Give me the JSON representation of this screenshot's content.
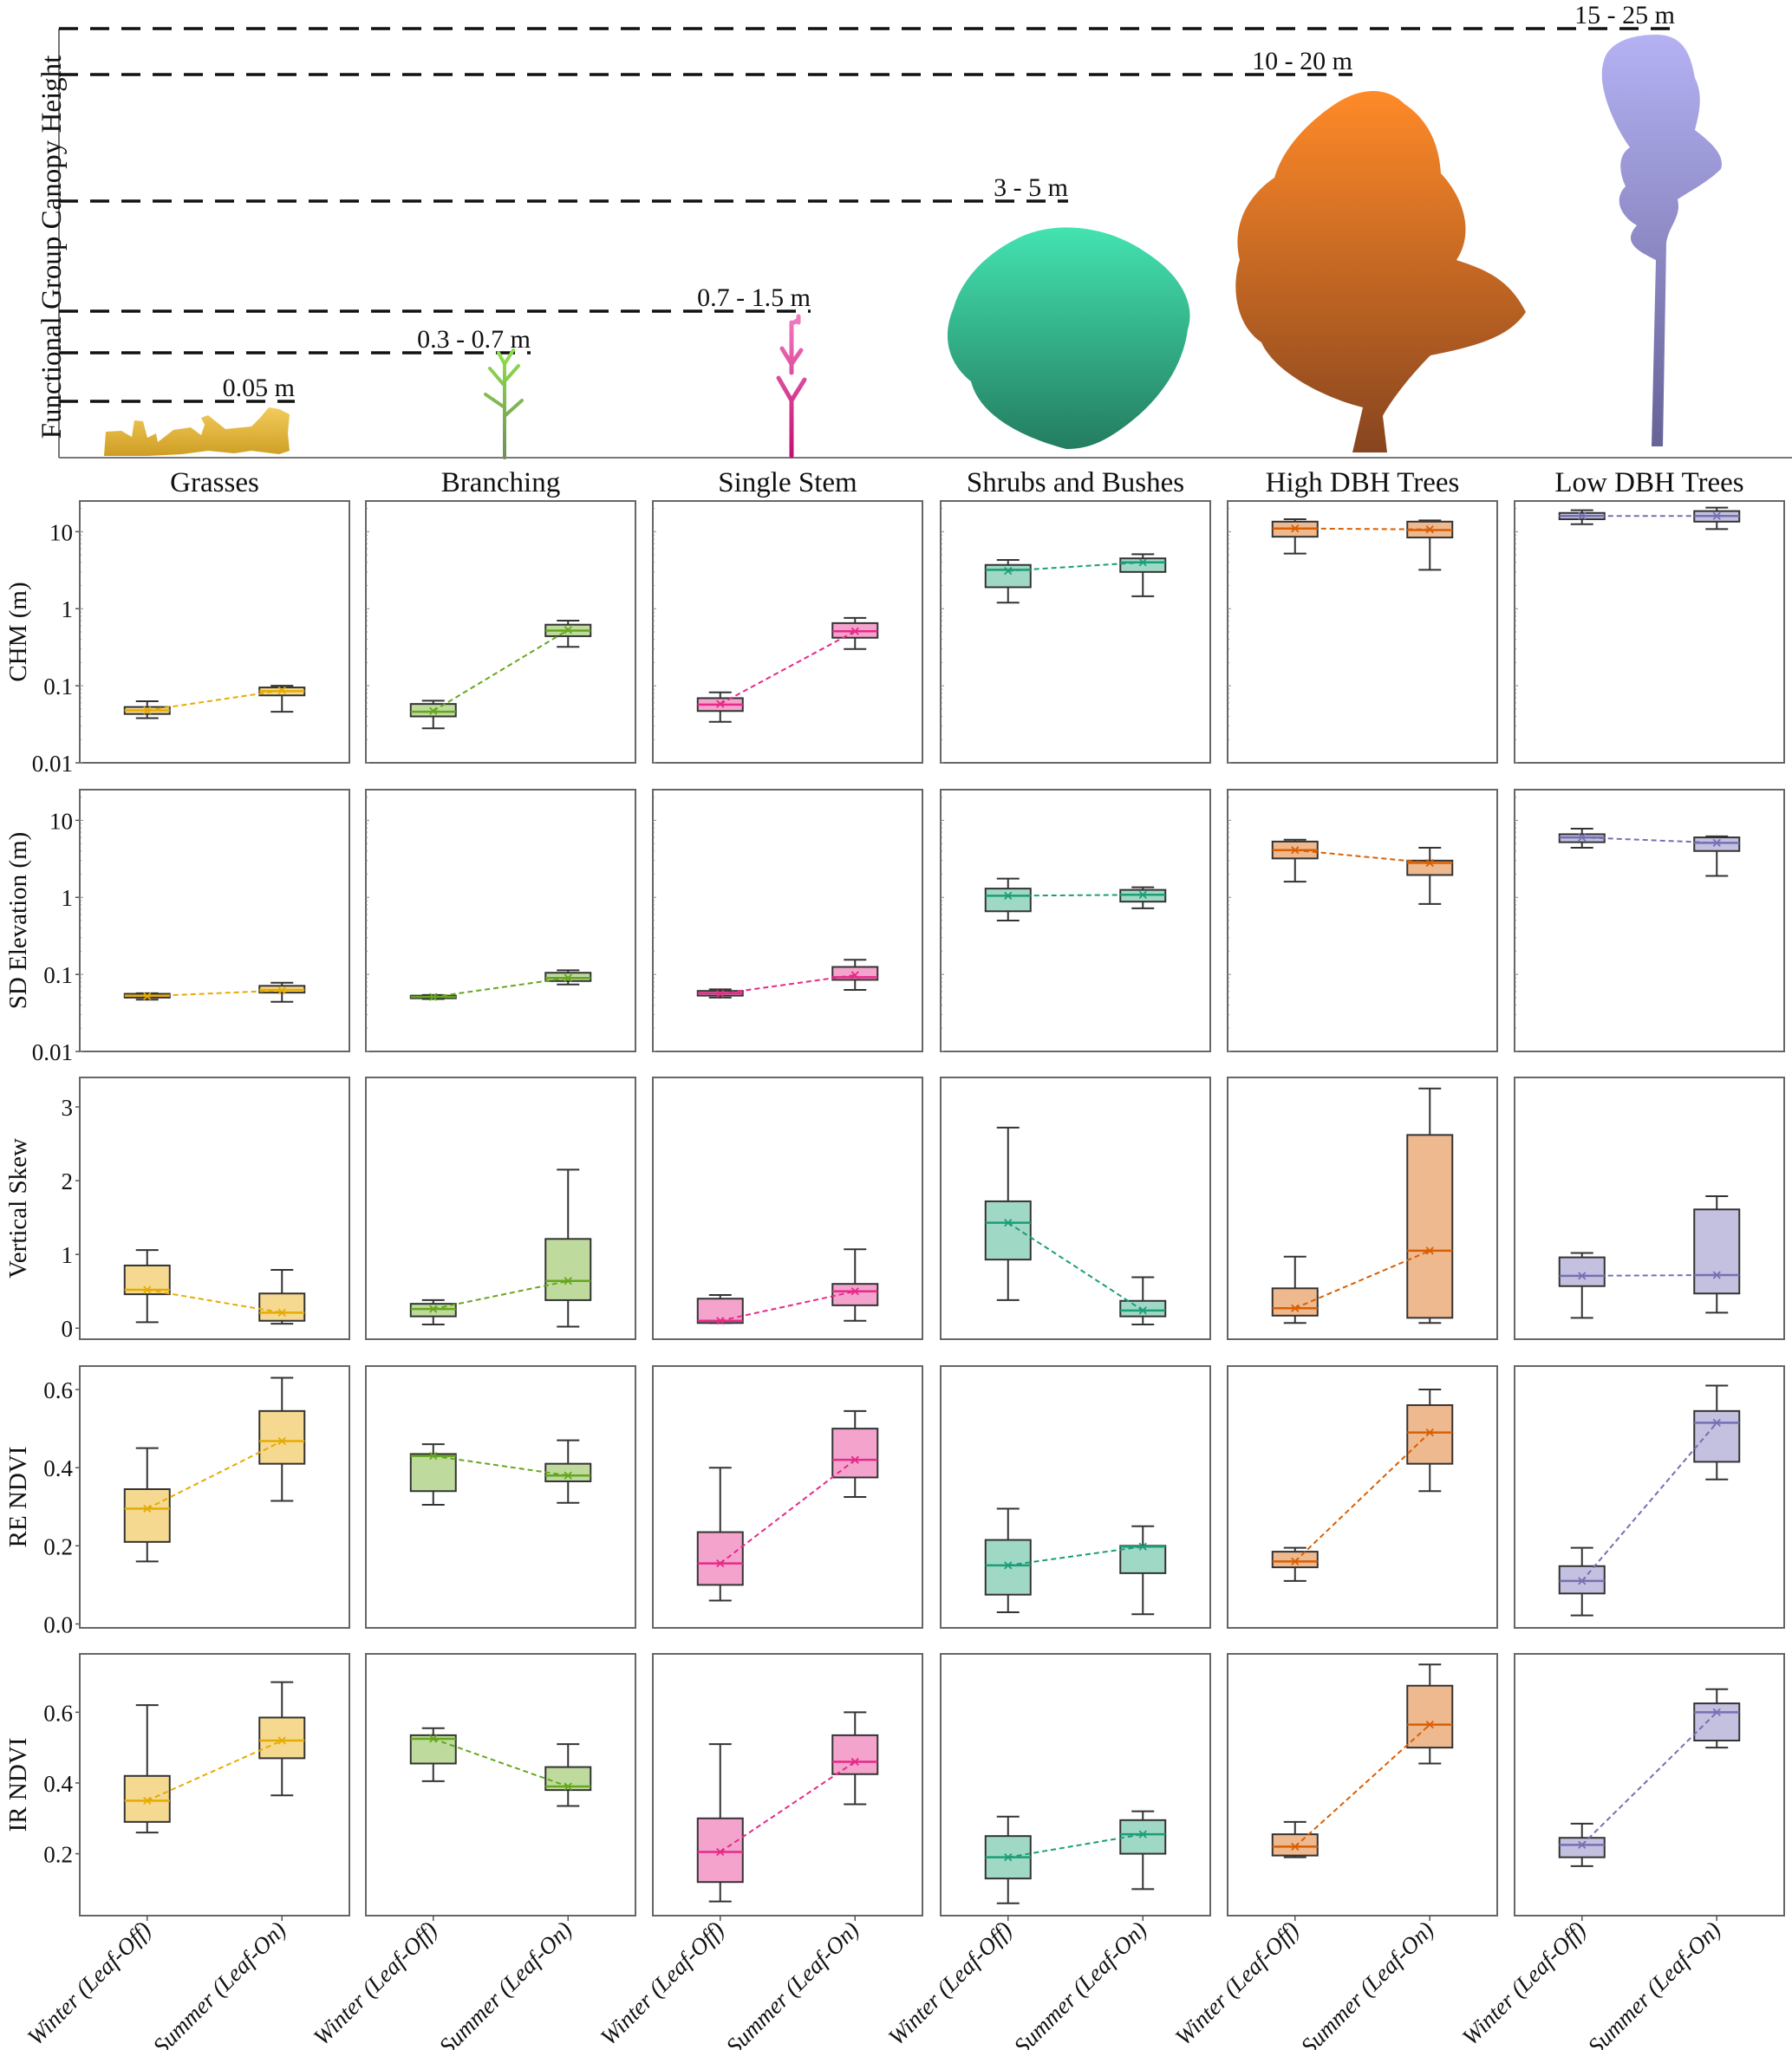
{
  "figure": {
    "top_panel": {
      "ylabel": "Functional Group Canopy Height",
      "height_labels": [
        {
          "group": "Grasses",
          "label": "0.05 m",
          "color": "#e0a81c"
        },
        {
          "group": "Branching",
          "label": "0.3 - 0.7 m",
          "color": "#8fcf5a"
        },
        {
          "group": "Single Stem",
          "label": "0.7 - 1.5 m",
          "color": "#e7298a"
        },
        {
          "group": "Shrubs and Bushes",
          "label": "3 - 5 m",
          "color": "#1b9e77"
        },
        {
          "group": "High DBH Trees",
          "label": "10 - 20 m",
          "color": "#d95f02"
        },
        {
          "group": "Low DBH Trees",
          "label": "15 - 25 m",
          "color": "#7570b3"
        }
      ]
    },
    "x_tick_labels": [
      "Winter (Leaf-Off)",
      "Summer (Leaf-On)"
    ]
  },
  "chart_data": {
    "type": "box",
    "groups": [
      "Grasses",
      "Branching",
      "Single Stem",
      "Shrubs and Bushes",
      "High DBH Trees",
      "Low DBH Trees"
    ],
    "group_colors": {
      "fill": [
        "#f5d990",
        "#bedb9d",
        "#f4a4cc",
        "#a0d8c6",
        "#efb990",
        "#c4c1e0"
      ],
      "line": [
        "#e6ab02",
        "#66a61e",
        "#e7298a",
        "#1b9e77",
        "#d95f02",
        "#7570b3"
      ]
    },
    "categories": [
      "Winter (Leaf-Off)",
      "Summer (Leaf-On)"
    ],
    "metrics": [
      {
        "name": "CHM (m)",
        "scale": "log",
        "ylim": [
          0.01,
          25
        ],
        "ticks": [
          0.01,
          0.1,
          1,
          10
        ],
        "tick_labels": [
          "0.01",
          "0.1",
          "1",
          "10"
        ],
        "data": [
          [
            {
              "whislo": 0.038,
              "q1": 0.043,
              "med": 0.048,
              "q3": 0.053,
              "whishi": 0.063,
              "mean": 0.048
            },
            {
              "whislo": 0.046,
              "q1": 0.075,
              "med": 0.085,
              "q3": 0.095,
              "whishi": 0.1,
              "mean": 0.087
            }
          ],
          [
            {
              "whislo": 0.028,
              "q1": 0.04,
              "med": 0.046,
              "q3": 0.058,
              "whishi": 0.064,
              "mean": 0.047
            },
            {
              "whislo": 0.32,
              "q1": 0.44,
              "med": 0.52,
              "q3": 0.62,
              "whishi": 0.7,
              "mean": 0.53
            }
          ],
          [
            {
              "whislo": 0.034,
              "q1": 0.047,
              "med": 0.057,
              "q3": 0.069,
              "whishi": 0.082,
              "mean": 0.058
            },
            {
              "whislo": 0.3,
              "q1": 0.42,
              "med": 0.51,
              "q3": 0.65,
              "whishi": 0.76,
              "mean": 0.51
            }
          ],
          [
            {
              "whislo": 1.2,
              "q1": 1.9,
              "med": 3.2,
              "q3": 3.7,
              "whishi": 4.3,
              "mean": 3.1
            },
            {
              "whislo": 1.45,
              "q1": 3.0,
              "med": 4.0,
              "q3": 4.5,
              "whishi": 5.1,
              "mean": 4.0
            }
          ],
          [
            {
              "whislo": 5.2,
              "q1": 8.6,
              "med": 11.0,
              "q3": 13.5,
              "whishi": 14.5,
              "mean": 11.0
            },
            {
              "whislo": 3.2,
              "q1": 8.4,
              "med": 10.5,
              "q3": 13.5,
              "whishi": 14.0,
              "mean": 10.7
            }
          ],
          [
            {
              "whislo": 12.5,
              "q1": 14.5,
              "med": 16.0,
              "q3": 17.5,
              "whishi": 19.0,
              "mean": 16.0
            },
            {
              "whislo": 10.8,
              "q1": 13.5,
              "med": 16.0,
              "q3": 18.5,
              "whishi": 20.5,
              "mean": 16.0
            }
          ]
        ]
      },
      {
        "name": "SD Elevation (m)",
        "scale": "log",
        "ylim": [
          0.01,
          25
        ],
        "ticks": [
          0.01,
          0.1,
          1,
          10
        ],
        "tick_labels": [
          "0.01",
          "0.1",
          "1",
          "10"
        ],
        "data": [
          [
            {
              "whislo": 0.047,
              "q1": 0.05,
              "med": 0.053,
              "q3": 0.056,
              "whishi": 0.057,
              "mean": 0.052
            },
            {
              "whislo": 0.044,
              "q1": 0.058,
              "med": 0.063,
              "q3": 0.071,
              "whishi": 0.078,
              "mean": 0.062
            }
          ],
          [
            {
              "whislo": 0.048,
              "q1": 0.049,
              "med": 0.051,
              "q3": 0.053,
              "whishi": 0.054,
              "mean": 0.051
            },
            {
              "whislo": 0.074,
              "q1": 0.082,
              "med": 0.09,
              "q3": 0.105,
              "whishi": 0.113,
              "mean": 0.09
            }
          ],
          [
            {
              "whislo": 0.05,
              "q1": 0.053,
              "med": 0.057,
              "q3": 0.061,
              "whishi": 0.064,
              "mean": 0.056
            },
            {
              "whislo": 0.063,
              "q1": 0.085,
              "med": 0.092,
              "q3": 0.125,
              "whishi": 0.155,
              "mean": 0.098
            }
          ],
          [
            {
              "whislo": 0.5,
              "q1": 0.66,
              "med": 1.05,
              "q3": 1.3,
              "whishi": 1.75,
              "mean": 1.05
            },
            {
              "whislo": 0.72,
              "q1": 0.88,
              "med": 1.08,
              "q3": 1.25,
              "whishi": 1.35,
              "mean": 1.08
            }
          ],
          [
            {
              "whislo": 1.6,
              "q1": 3.2,
              "med": 4.1,
              "q3": 5.3,
              "whishi": 5.6,
              "mean": 4.1
            },
            {
              "whislo": 0.82,
              "q1": 1.95,
              "med": 2.8,
              "q3": 3.0,
              "whishi": 4.4,
              "mean": 2.8
            }
          ],
          [
            {
              "whislo": 4.4,
              "q1": 5.2,
              "med": 6.0,
              "q3": 6.6,
              "whishi": 7.8,
              "mean": 6.0
            },
            {
              "whislo": 1.9,
              "q1": 4.0,
              "med": 5.1,
              "q3": 6.0,
              "whishi": 6.2,
              "mean": 5.1
            }
          ]
        ]
      },
      {
        "name": "Vertical Skew",
        "scale": "linear",
        "ylim": [
          -0.15,
          3.4
        ],
        "ticks": [
          0,
          1,
          2,
          3
        ],
        "tick_labels": [
          "0",
          "1",
          "2",
          "3"
        ],
        "data": [
          [
            {
              "whislo": 0.08,
              "q1": 0.46,
              "med": 0.52,
              "q3": 0.85,
              "whishi": 1.06,
              "mean": 0.52
            },
            {
              "whislo": 0.06,
              "q1": 0.1,
              "med": 0.21,
              "q3": 0.47,
              "whishi": 0.79,
              "mean": 0.21
            }
          ],
          [
            {
              "whislo": 0.05,
              "q1": 0.16,
              "med": 0.26,
              "q3": 0.33,
              "whishi": 0.38,
              "mean": 0.26
            },
            {
              "whislo": 0.02,
              "q1": 0.38,
              "med": 0.64,
              "q3": 1.21,
              "whishi": 2.15,
              "mean": 0.64
            }
          ],
          [
            {
              "whislo": 0.07,
              "q1": 0.07,
              "med": 0.1,
              "q3": 0.4,
              "whishi": 0.45,
              "mean": 0.1
            },
            {
              "whislo": 0.1,
              "q1": 0.31,
              "med": 0.5,
              "q3": 0.6,
              "whishi": 1.07,
              "mean": 0.5
            }
          ],
          [
            {
              "whislo": 0.38,
              "q1": 0.93,
              "med": 1.43,
              "q3": 1.72,
              "whishi": 2.72,
              "mean": 1.43
            },
            {
              "whislo": 0.05,
              "q1": 0.16,
              "med": 0.24,
              "q3": 0.37,
              "whishi": 0.69,
              "mean": 0.24
            }
          ],
          [
            {
              "whislo": 0.07,
              "q1": 0.17,
              "med": 0.27,
              "q3": 0.54,
              "whishi": 0.97,
              "mean": 0.27
            },
            {
              "whislo": 0.07,
              "q1": 0.14,
              "med": 1.05,
              "q3": 2.62,
              "whishi": 3.25,
              "mean": 1.05
            }
          ],
          [
            {
              "whislo": 0.14,
              "q1": 0.57,
              "med": 0.71,
              "q3": 0.96,
              "whishi": 1.02,
              "mean": 0.71
            },
            {
              "whislo": 0.21,
              "q1": 0.47,
              "med": 0.72,
              "q3": 1.61,
              "whishi": 1.79,
              "mean": 0.72
            }
          ]
        ]
      },
      {
        "name": "RE NDVI",
        "scale": "linear",
        "ylim": [
          -0.01,
          0.66
        ],
        "ticks": [
          0.0,
          0.2,
          0.4,
          0.6
        ],
        "tick_labels": [
          "0.0",
          "0.2",
          "0.4",
          "0.6"
        ],
        "data": [
          [
            {
              "whislo": 0.16,
              "q1": 0.21,
              "med": 0.295,
              "q3": 0.345,
              "whishi": 0.45,
              "mean": 0.295
            },
            {
              "whislo": 0.315,
              "q1": 0.41,
              "med": 0.468,
              "q3": 0.545,
              "whishi": 0.63,
              "mean": 0.468
            }
          ],
          [
            {
              "whislo": 0.305,
              "q1": 0.34,
              "med": 0.43,
              "q3": 0.435,
              "whishi": 0.46,
              "mean": 0.43
            },
            {
              "whislo": 0.31,
              "q1": 0.365,
              "med": 0.38,
              "q3": 0.41,
              "whishi": 0.47,
              "mean": 0.38
            }
          ],
          [
            {
              "whislo": 0.06,
              "q1": 0.1,
              "med": 0.155,
              "q3": 0.235,
              "whishi": 0.4,
              "mean": 0.155
            },
            {
              "whislo": 0.325,
              "q1": 0.375,
              "med": 0.42,
              "q3": 0.5,
              "whishi": 0.545,
              "mean": 0.42
            }
          ],
          [
            {
              "whislo": 0.03,
              "q1": 0.075,
              "med": 0.15,
              "q3": 0.215,
              "whishi": 0.295,
              "mean": 0.15
            },
            {
              "whislo": 0.025,
              "q1": 0.13,
              "med": 0.198,
              "q3": 0.2,
              "whishi": 0.25,
              "mean": 0.198
            }
          ],
          [
            {
              "whislo": 0.11,
              "q1": 0.145,
              "med": 0.16,
              "q3": 0.185,
              "whishi": 0.195,
              "mean": 0.16
            },
            {
              "whislo": 0.34,
              "q1": 0.41,
              "med": 0.49,
              "q3": 0.56,
              "whishi": 0.6,
              "mean": 0.49
            }
          ],
          [
            {
              "whislo": 0.022,
              "q1": 0.078,
              "med": 0.11,
              "q3": 0.148,
              "whishi": 0.195,
              "mean": 0.11
            },
            {
              "whislo": 0.37,
              "q1": 0.415,
              "med": 0.515,
              "q3": 0.545,
              "whishi": 0.61,
              "mean": 0.515
            }
          ]
        ]
      },
      {
        "name": "IR NDVI",
        "scale": "linear",
        "ylim": [
          0.025,
          0.765
        ],
        "ticks": [
          0.2,
          0.4,
          0.6
        ],
        "tick_labels": [
          "0.2",
          "0.4",
          "0.6"
        ],
        "data": [
          [
            {
              "whislo": 0.26,
              "q1": 0.29,
              "med": 0.35,
              "q3": 0.42,
              "whishi": 0.62,
              "mean": 0.35
            },
            {
              "whislo": 0.365,
              "q1": 0.47,
              "med": 0.52,
              "q3": 0.585,
              "whishi": 0.685,
              "mean": 0.52
            }
          ],
          [
            {
              "whislo": 0.405,
              "q1": 0.455,
              "med": 0.525,
              "q3": 0.535,
              "whishi": 0.555,
              "mean": 0.525
            },
            {
              "whislo": 0.335,
              "q1": 0.38,
              "med": 0.39,
              "q3": 0.445,
              "whishi": 0.51,
              "mean": 0.39
            }
          ],
          [
            {
              "whislo": 0.065,
              "q1": 0.12,
              "med": 0.205,
              "q3": 0.3,
              "whishi": 0.51,
              "mean": 0.205
            },
            {
              "whislo": 0.34,
              "q1": 0.425,
              "med": 0.46,
              "q3": 0.535,
              "whishi": 0.6,
              "mean": 0.46
            }
          ],
          [
            {
              "whislo": 0.06,
              "q1": 0.13,
              "med": 0.19,
              "q3": 0.25,
              "whishi": 0.305,
              "mean": 0.19
            },
            {
              "whislo": 0.1,
              "q1": 0.2,
              "med": 0.255,
              "q3": 0.295,
              "whishi": 0.32,
              "mean": 0.255
            }
          ],
          [
            {
              "whislo": 0.19,
              "q1": 0.195,
              "med": 0.22,
              "q3": 0.255,
              "whishi": 0.29,
              "mean": 0.22
            },
            {
              "whislo": 0.455,
              "q1": 0.5,
              "med": 0.565,
              "q3": 0.675,
              "whishi": 0.735,
              "mean": 0.565
            }
          ],
          [
            {
              "whislo": 0.165,
              "q1": 0.19,
              "med": 0.225,
              "q3": 0.245,
              "whishi": 0.285,
              "mean": 0.225
            },
            {
              "whislo": 0.5,
              "q1": 0.52,
              "med": 0.6,
              "q3": 0.625,
              "whishi": 0.665,
              "mean": 0.6
            }
          ]
        ]
      }
    ]
  }
}
